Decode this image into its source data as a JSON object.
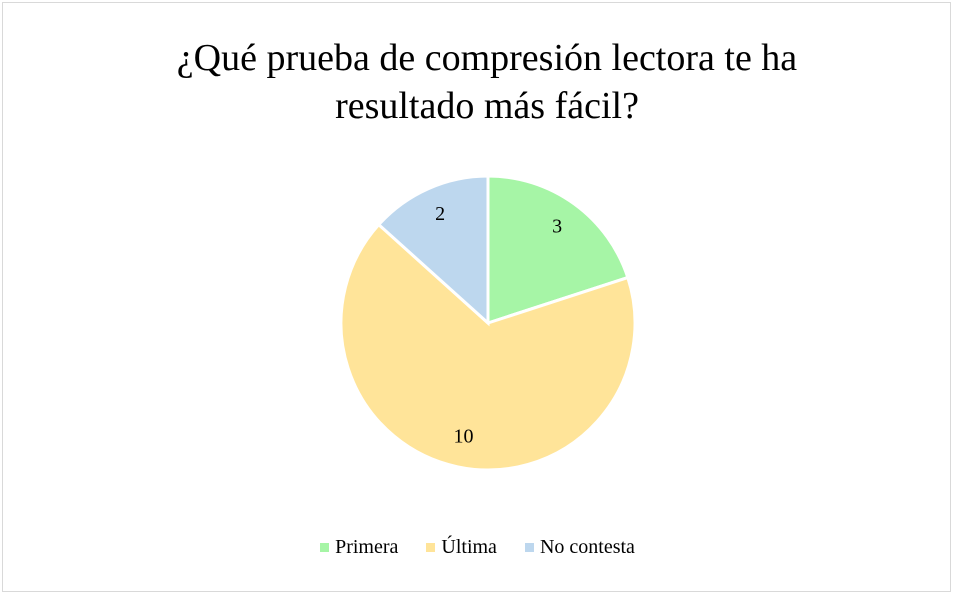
{
  "chart_data": {
    "type": "pie",
    "title": "¿Qué prueba de compresión lectora te ha resultado más fácil?",
    "categories": [
      "Primera",
      "Última",
      "No contesta"
    ],
    "values": [
      3,
      10,
      2
    ],
    "colors": [
      "#a6f5a6",
      "#ffe499",
      "#bdd7ee"
    ],
    "legend": "bottom"
  }
}
